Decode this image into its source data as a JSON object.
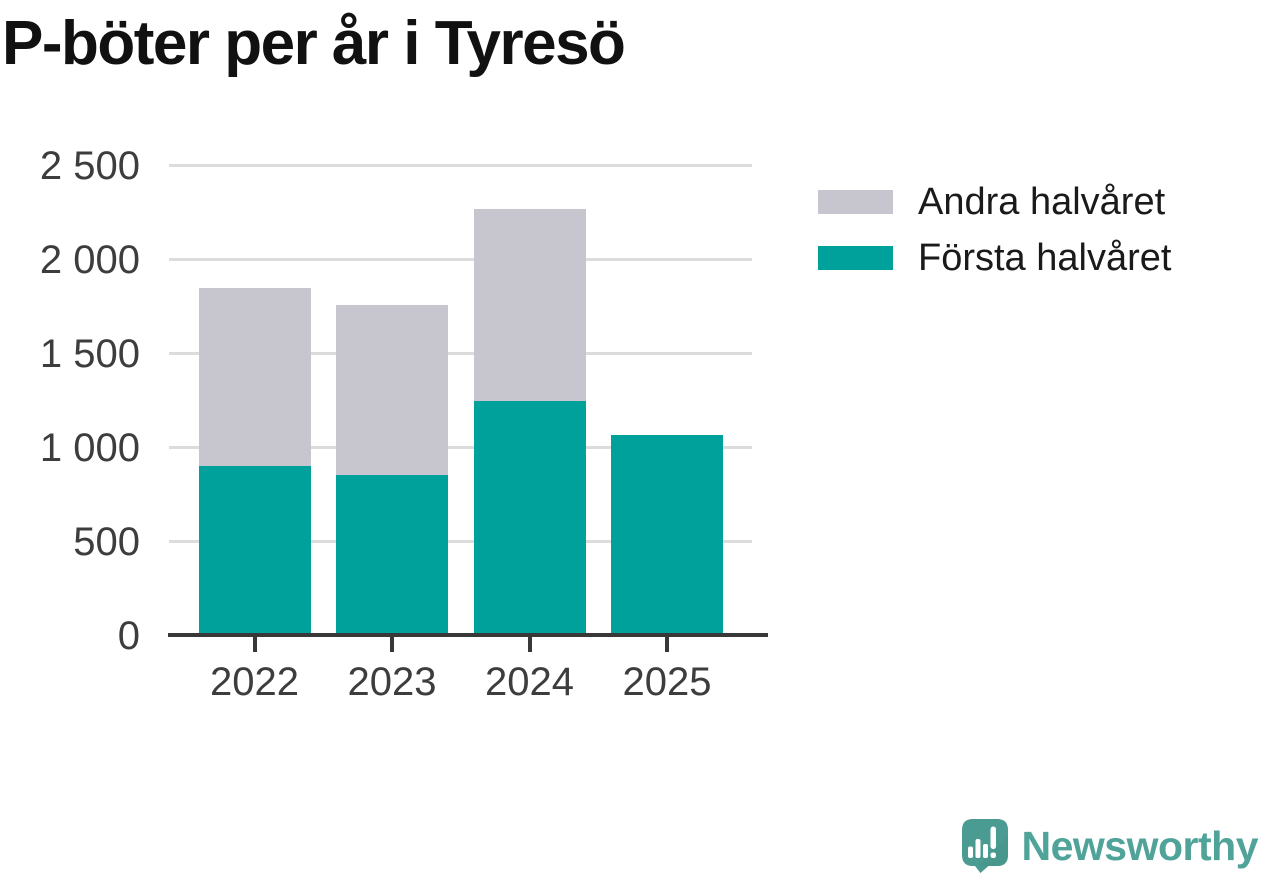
{
  "title": "P-böter per år i Tyresö",
  "chart_data": {
    "type": "bar",
    "stacked": true,
    "title": "P-böter per år i Tyresö",
    "xlabel": "",
    "ylabel": "",
    "categories": [
      "2022",
      "2023",
      "2024",
      "2025"
    ],
    "series": [
      {
        "name": "Första halvåret",
        "color": "#00A19A",
        "values": [
          900,
          850,
          1245,
          1065
        ]
      },
      {
        "name": "Andra halvåret",
        "color": "#C7C6CE",
        "values": [
          945,
          905,
          1020,
          0
        ]
      }
    ],
    "ylim": [
      0,
      2500
    ],
    "yticks": [
      {
        "value": 0,
        "label": "0"
      },
      {
        "value": 500,
        "label": "500"
      },
      {
        "value": 1000,
        "label": "1 000"
      },
      {
        "value": 1500,
        "label": "1 500"
      },
      {
        "value": 2000,
        "label": "2 000"
      },
      {
        "value": 2500,
        "label": "2 500"
      }
    ],
    "grid": true,
    "legend_position": "right"
  },
  "legend": [
    {
      "label": "Andra halvåret",
      "color": "#C7C6CE"
    },
    {
      "label": "Första halvåret",
      "color": "#00A19A"
    }
  ],
  "branding": {
    "wordmark": "Newsworthy",
    "wordmark_color": "#4FA399",
    "logo_bubble_color": "#4A9B91",
    "logo_shade_color": "#45938A"
  },
  "style_colors": {
    "gridline": "#dcdcdc",
    "axis_line": "#383838",
    "axis_text": "#3d3d3d"
  }
}
